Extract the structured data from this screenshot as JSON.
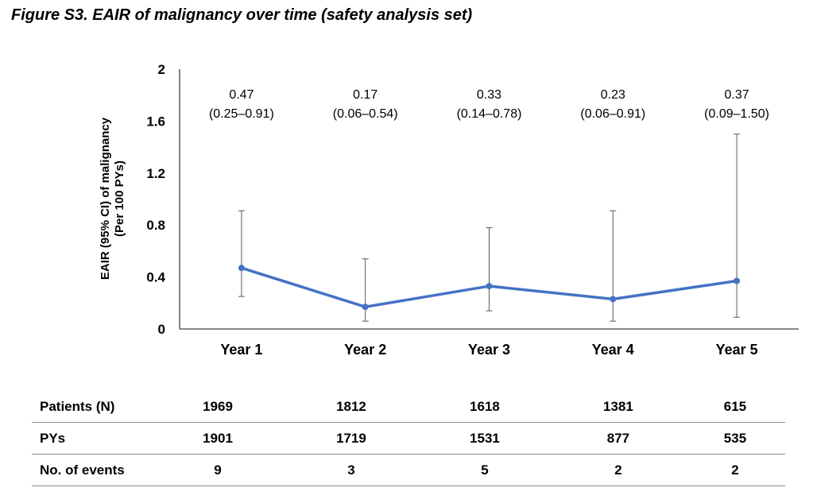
{
  "figure_title": "Figure S3. EAIR of malignancy over time (safety analysis set)",
  "chart_data": {
    "type": "line",
    "categories": [
      "Year 1",
      "Year 2",
      "Year 3",
      "Year 4",
      "Year 5"
    ],
    "series": [
      {
        "values": [
          0.47,
          0.17,
          0.33,
          0.23,
          0.37
        ],
        "ci_lower": [
          0.25,
          0.06,
          0.14,
          0.06,
          0.09
        ],
        "ci_upper": [
          0.91,
          0.54,
          0.78,
          0.91,
          1.5
        ],
        "color": "#4472c4"
      }
    ],
    "data_labels": [
      {
        "value": "0.47",
        "ci": "(0.25–0.91)"
      },
      {
        "value": "0.17",
        "ci": "(0.06–0.54)"
      },
      {
        "value": "0.33",
        "ci": "(0.14–0.78)"
      },
      {
        "value": "0.23",
        "ci": "(0.06–0.91)"
      },
      {
        "value": "0.37",
        "ci": "(0.09–1.50)"
      }
    ],
    "ylabel_lines": [
      "EAIR (95% CI) of malignancy",
      "(Per 100 PYs)"
    ],
    "yticks": [
      "0",
      "0.4",
      "0.8",
      "1.2",
      "1.6",
      "2"
    ],
    "ylim": [
      0,
      2
    ],
    "grid": false,
    "errorbar_color": "#595959"
  },
  "table": {
    "rows": [
      {
        "label": "Patients (N)",
        "values": [
          "1969",
          "1812",
          "1618",
          "1381",
          "615"
        ]
      },
      {
        "label": "PYs",
        "values": [
          "1901",
          "1719",
          "1531",
          "877",
          "535"
        ]
      },
      {
        "label": "No. of events",
        "values": [
          "9",
          "3",
          "5",
          "2",
          "2"
        ]
      }
    ]
  }
}
